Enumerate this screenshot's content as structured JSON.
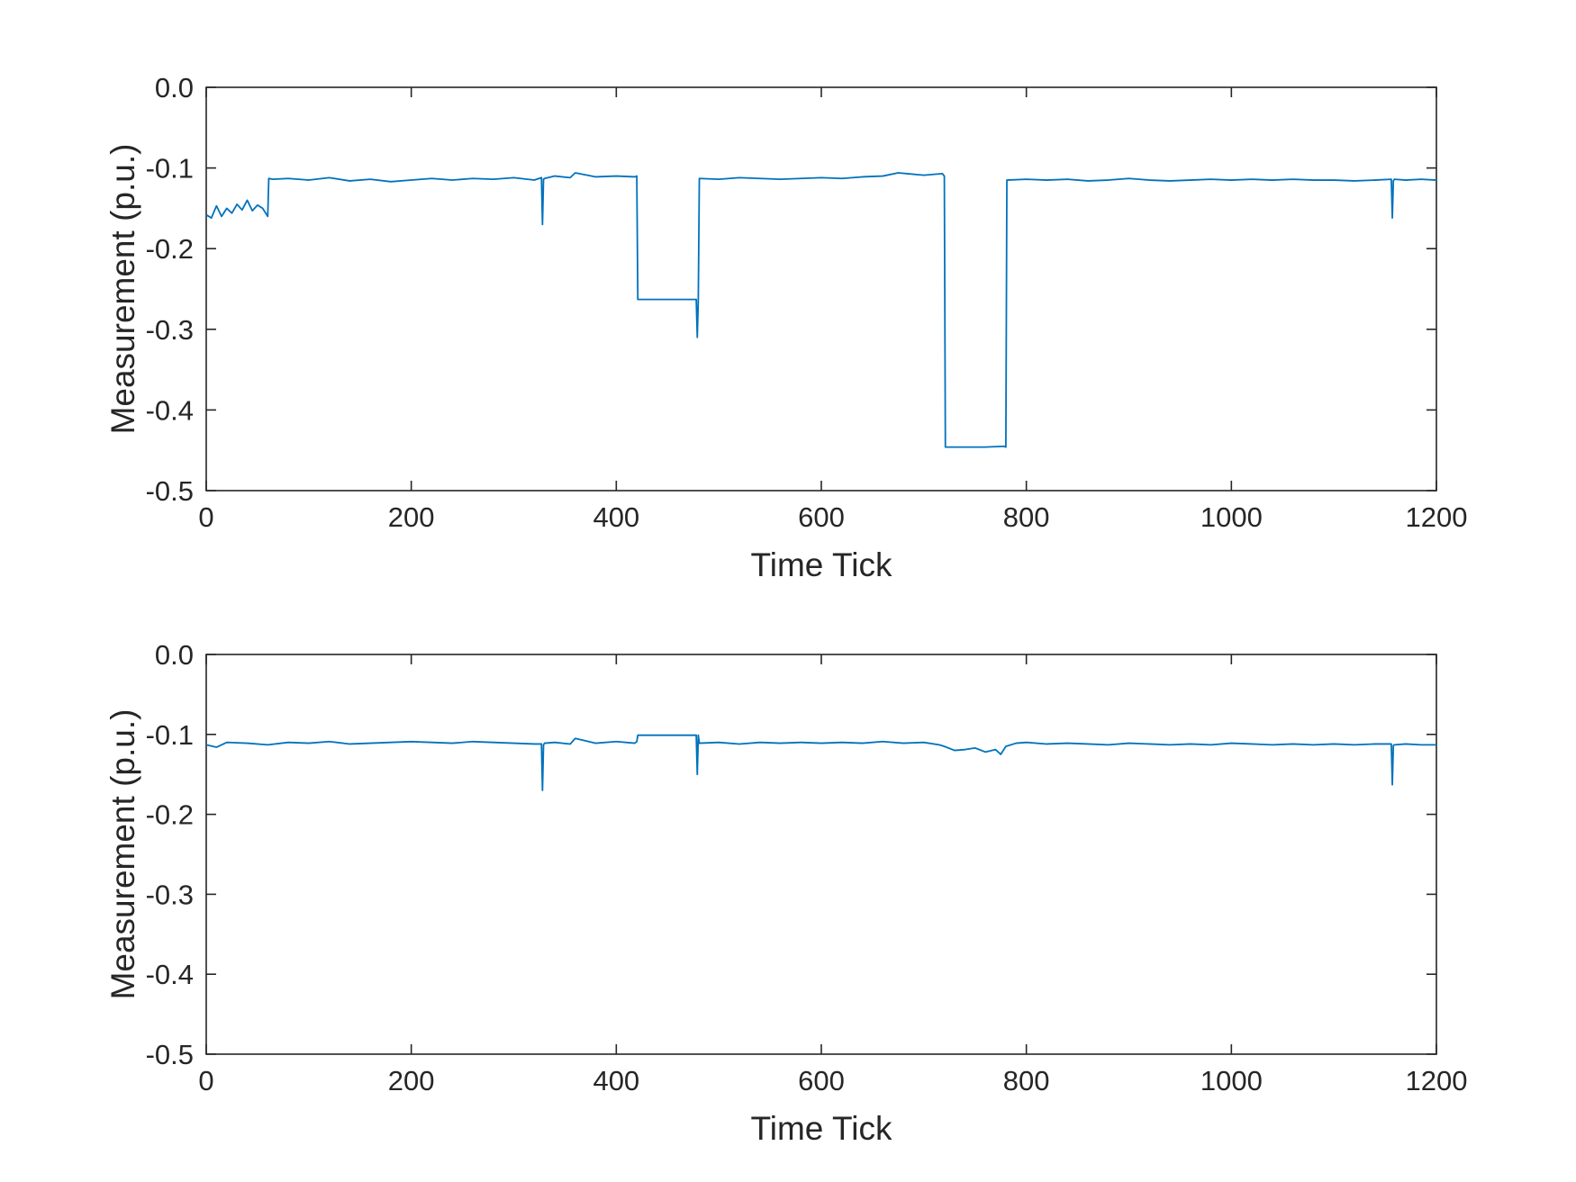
{
  "chart_data": [
    {
      "type": "line",
      "xlabel": "Time Tick",
      "ylabel": "Measurement (p.u.)",
      "xlim": [
        0,
        1200
      ],
      "ylim": [
        -0.5,
        0.0
      ],
      "xticks": [
        0,
        200,
        400,
        600,
        800,
        1000,
        1200
      ],
      "xtick_labels": [
        "0",
        "200",
        "400",
        "600",
        "800",
        "1000",
        "1200"
      ],
      "yticks": [
        0.0,
        -0.1,
        -0.2,
        -0.3,
        -0.4,
        -0.5
      ],
      "ytick_labels": [
        "0.0",
        "-0.1",
        "-0.2",
        "-0.3",
        "-0.4",
        "-0.5"
      ],
      "grid": false,
      "color": "#0072BD",
      "series": [
        {
          "x": [
            0,
            5,
            10,
            15,
            20,
            25,
            30,
            35,
            40,
            45,
            50,
            55,
            60,
            61,
            65,
            80,
            100,
            120,
            140,
            160,
            180,
            200,
            220,
            240,
            260,
            280,
            300,
            320,
            327,
            328,
            329,
            330,
            340,
            355,
            360,
            380,
            400,
            418,
            420,
            421,
            440,
            460,
            478,
            479,
            480,
            481,
            500,
            520,
            540,
            560,
            580,
            600,
            620,
            640,
            660,
            675,
            700,
            718,
            720,
            721,
            740,
            760,
            778,
            780,
            781,
            800,
            820,
            840,
            860,
            880,
            900,
            920,
            940,
            960,
            980,
            1000,
            1020,
            1040,
            1060,
            1080,
            1100,
            1120,
            1140,
            1156,
            1157,
            1158,
            1159,
            1170,
            1185,
            1200
          ],
          "y": [
            -0.158,
            -0.162,
            -0.147,
            -0.16,
            -0.15,
            -0.156,
            -0.145,
            -0.152,
            -0.14,
            -0.153,
            -0.146,
            -0.15,
            -0.16,
            -0.113,
            -0.114,
            -0.113,
            -0.115,
            -0.112,
            -0.116,
            -0.114,
            -0.117,
            -0.115,
            -0.113,
            -0.115,
            -0.113,
            -0.114,
            -0.112,
            -0.115,
            -0.112,
            -0.17,
            -0.114,
            -0.113,
            -0.11,
            -0.112,
            -0.106,
            -0.111,
            -0.11,
            -0.111,
            -0.11,
            -0.263,
            -0.263,
            -0.263,
            -0.263,
            -0.31,
            -0.263,
            -0.113,
            -0.114,
            -0.112,
            -0.113,
            -0.114,
            -0.113,
            -0.112,
            -0.113,
            -0.111,
            -0.11,
            -0.106,
            -0.109,
            -0.107,
            -0.11,
            -0.446,
            -0.446,
            -0.446,
            -0.445,
            -0.446,
            -0.115,
            -0.114,
            -0.115,
            -0.114,
            -0.116,
            -0.115,
            -0.113,
            -0.115,
            -0.116,
            -0.115,
            -0.114,
            -0.115,
            -0.114,
            -0.115,
            -0.114,
            -0.115,
            -0.115,
            -0.116,
            -0.115,
            -0.114,
            -0.162,
            -0.116,
            -0.114,
            -0.115,
            -0.114,
            -0.115
          ]
        }
      ]
    },
    {
      "type": "line",
      "xlabel": "Time Tick",
      "ylabel": "Measurement (p.u.)",
      "xlim": [
        0,
        1200
      ],
      "ylim": [
        -0.5,
        0.0
      ],
      "xticks": [
        0,
        200,
        400,
        600,
        800,
        1000,
        1200
      ],
      "xtick_labels": [
        "0",
        "200",
        "400",
        "600",
        "800",
        "1000",
        "1200"
      ],
      "yticks": [
        0.0,
        -0.1,
        -0.2,
        -0.3,
        -0.4,
        -0.5
      ],
      "ytick_labels": [
        "0.0",
        "-0.1",
        "-0.2",
        "-0.3",
        "-0.4",
        "-0.5"
      ],
      "grid": false,
      "color": "#0072BD",
      "series": [
        {
          "x": [
            0,
            10,
            20,
            40,
            60,
            80,
            100,
            120,
            140,
            160,
            180,
            200,
            220,
            240,
            260,
            280,
            300,
            320,
            327,
            328,
            329,
            330,
            340,
            355,
            360,
            380,
            400,
            418,
            420,
            421,
            440,
            460,
            478,
            479,
            480,
            481,
            500,
            520,
            540,
            560,
            580,
            600,
            620,
            640,
            660,
            680,
            700,
            715,
            720,
            730,
            740,
            750,
            760,
            770,
            775,
            780,
            790,
            800,
            820,
            840,
            860,
            880,
            900,
            920,
            940,
            960,
            980,
            1000,
            1020,
            1040,
            1060,
            1080,
            1100,
            1120,
            1140,
            1156,
            1157,
            1158,
            1159,
            1170,
            1185,
            1200
          ],
          "y": [
            -0.113,
            -0.116,
            -0.11,
            -0.111,
            -0.113,
            -0.11,
            -0.111,
            -0.109,
            -0.112,
            -0.111,
            -0.11,
            -0.109,
            -0.11,
            -0.111,
            -0.109,
            -0.11,
            -0.111,
            -0.112,
            -0.112,
            -0.17,
            -0.113,
            -0.111,
            -0.11,
            -0.112,
            -0.105,
            -0.111,
            -0.109,
            -0.111,
            -0.109,
            -0.101,
            -0.101,
            -0.101,
            -0.101,
            -0.15,
            -0.101,
            -0.111,
            -0.11,
            -0.112,
            -0.11,
            -0.111,
            -0.11,
            -0.111,
            -0.11,
            -0.111,
            -0.109,
            -0.111,
            -0.11,
            -0.113,
            -0.115,
            -0.12,
            -0.119,
            -0.117,
            -0.122,
            -0.119,
            -0.125,
            -0.115,
            -0.111,
            -0.11,
            -0.112,
            -0.111,
            -0.112,
            -0.113,
            -0.111,
            -0.112,
            -0.113,
            -0.112,
            -0.113,
            -0.111,
            -0.112,
            -0.113,
            -0.112,
            -0.113,
            -0.112,
            -0.113,
            -0.112,
            -0.112,
            -0.163,
            -0.114,
            -0.113,
            -0.112,
            -0.113,
            -0.113
          ]
        }
      ]
    }
  ]
}
